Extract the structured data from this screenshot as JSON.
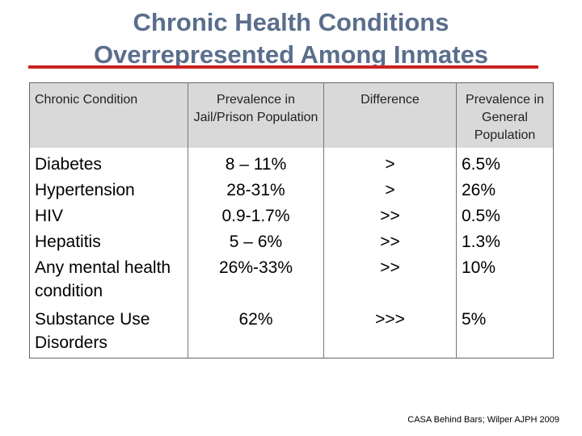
{
  "title": {
    "line1": "Chronic Health Conditions",
    "line2": "Overrepresented Among Inmates"
  },
  "table": {
    "headers": [
      "Chronic Condition",
      "Prevalence in Jail/Prison Population",
      "Difference",
      "Prevalence in General Population"
    ],
    "rows": [
      {
        "condition": "Diabetes",
        "jail": "8 – 11%",
        "difference": ">",
        "general": "6.5%"
      },
      {
        "condition": "Hypertension",
        "jail": "28-31%",
        "difference": ">",
        "general": "26%"
      },
      {
        "condition": "HIV",
        "jail": "0.9-1.7%",
        "difference": ">>",
        "general": "0.5%"
      },
      {
        "condition": "Hepatitis",
        "jail": "5 – 6%",
        "difference": ">>",
        "general": "1.3%"
      },
      {
        "condition": "Any mental health condition",
        "jail": "26%-33%",
        "difference": ">>",
        "general": "10%"
      },
      {
        "condition": "Substance Use Disorders",
        "jail": "62%",
        "difference": ">>>",
        "general": "5%"
      }
    ]
  },
  "source": "CASA Behind Bars; Wilper AJPH 2009",
  "colors": {
    "title": "#5a6e8c",
    "rule": "#cc2222",
    "header_bg": "#d9d9d9"
  }
}
